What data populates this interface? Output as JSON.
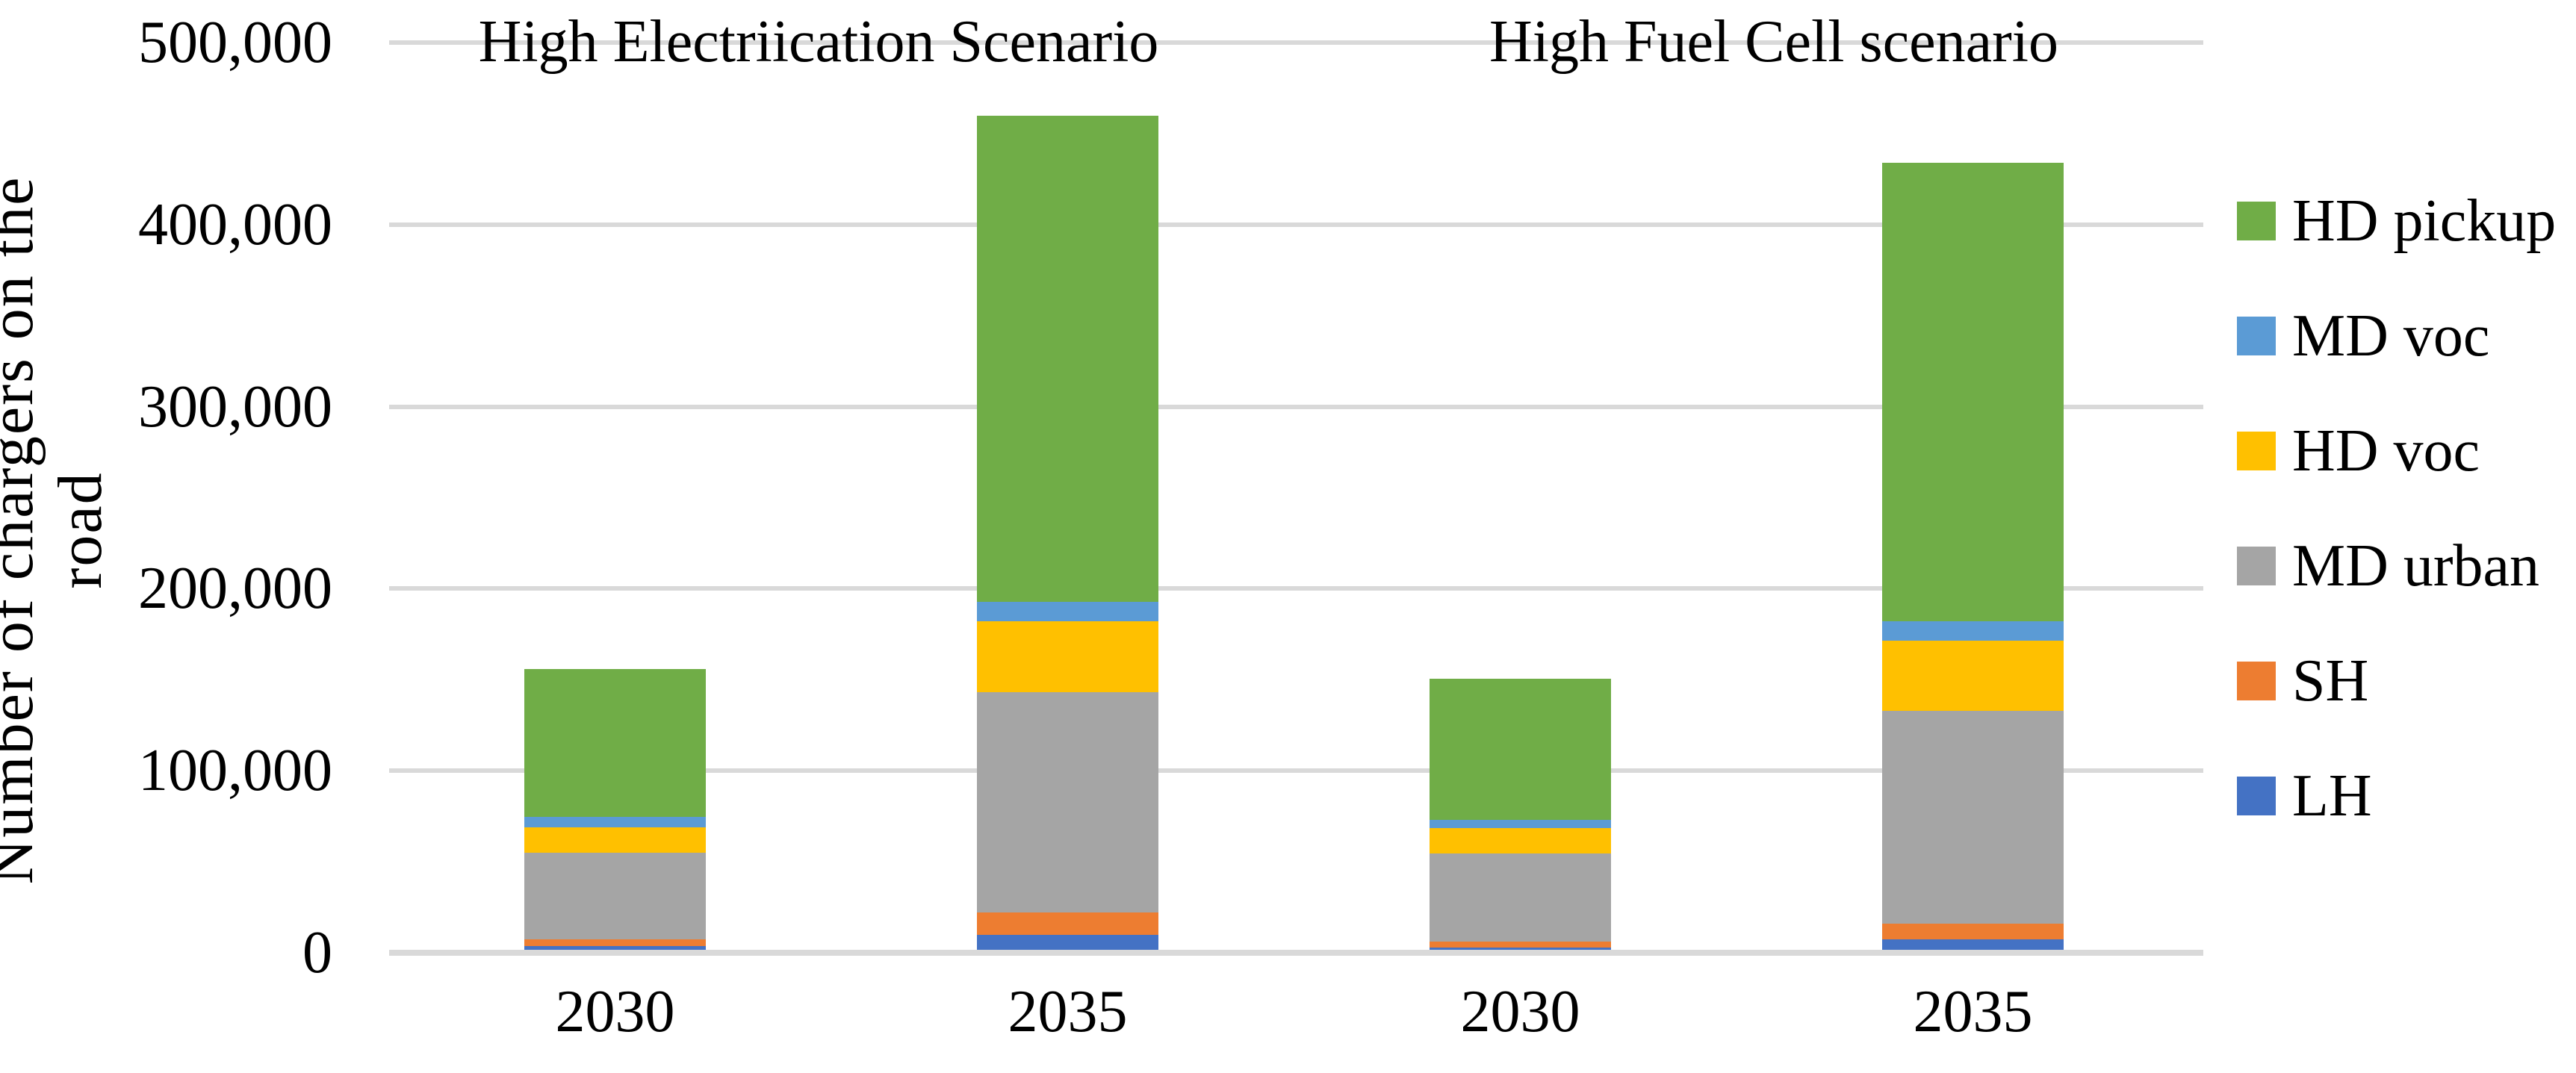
{
  "chart_data": {
    "type": "bar",
    "stacked": true,
    "titles": {
      "left": "High Electriication Scenario",
      "right": "High Fuel Cell scenario"
    },
    "y_axis": {
      "label": "Number of chargers on the road",
      "label_lines": [
        "Number of chargers on the",
        "road"
      ],
      "min": 0,
      "max": 500000,
      "tick_step": 100000,
      "tick_labels": [
        "0",
        "100,000",
        "200,000",
        "300,000",
        "400,000",
        "500,000"
      ]
    },
    "x_axis": {
      "tick_labels": [
        "2030",
        "2035",
        "2030",
        "2035"
      ]
    },
    "series": [
      {
        "name": "LH",
        "color": "#4472C4",
        "values": [
          3500,
          10000,
          3000,
          7500
        ]
      },
      {
        "name": "SH",
        "color": "#ED7D31",
        "values": [
          4000,
          12000,
          3000,
          8500
        ]
      },
      {
        "name": "MD urban",
        "color": "#A5A5A5",
        "values": [
          47500,
          121000,
          48500,
          117000
        ]
      },
      {
        "name": "HD voc",
        "color": "#FFC000",
        "values": [
          14000,
          39000,
          14000,
          38500
        ]
      },
      {
        "name": "MD voc",
        "color": "#5B9BD5",
        "values": [
          5500,
          11000,
          4500,
          10500
        ]
      },
      {
        "name": "HD pickup",
        "color": "#70AD47",
        "values": [
          81500,
          267000,
          77500,
          252000
        ]
      }
    ],
    "totals": [
      156000,
      460000,
      150500,
      434000
    ],
    "legend": {
      "position": "right",
      "items": [
        {
          "label": "HD pickup",
          "color": "#70AD47"
        },
        {
          "label": "MD voc",
          "color": "#5B9BD5"
        },
        {
          "label": "HD voc",
          "color": "#FFC000"
        },
        {
          "label": "MD urban",
          "color": "#A5A5A5"
        },
        {
          "label": "SH",
          "color": "#ED7D31"
        },
        {
          "label": "LH",
          "color": "#4472C4"
        }
      ]
    },
    "grid": {
      "show": true,
      "gridline_color": "#D9D9D9",
      "axis_line_color": "#D9D9D9"
    }
  }
}
